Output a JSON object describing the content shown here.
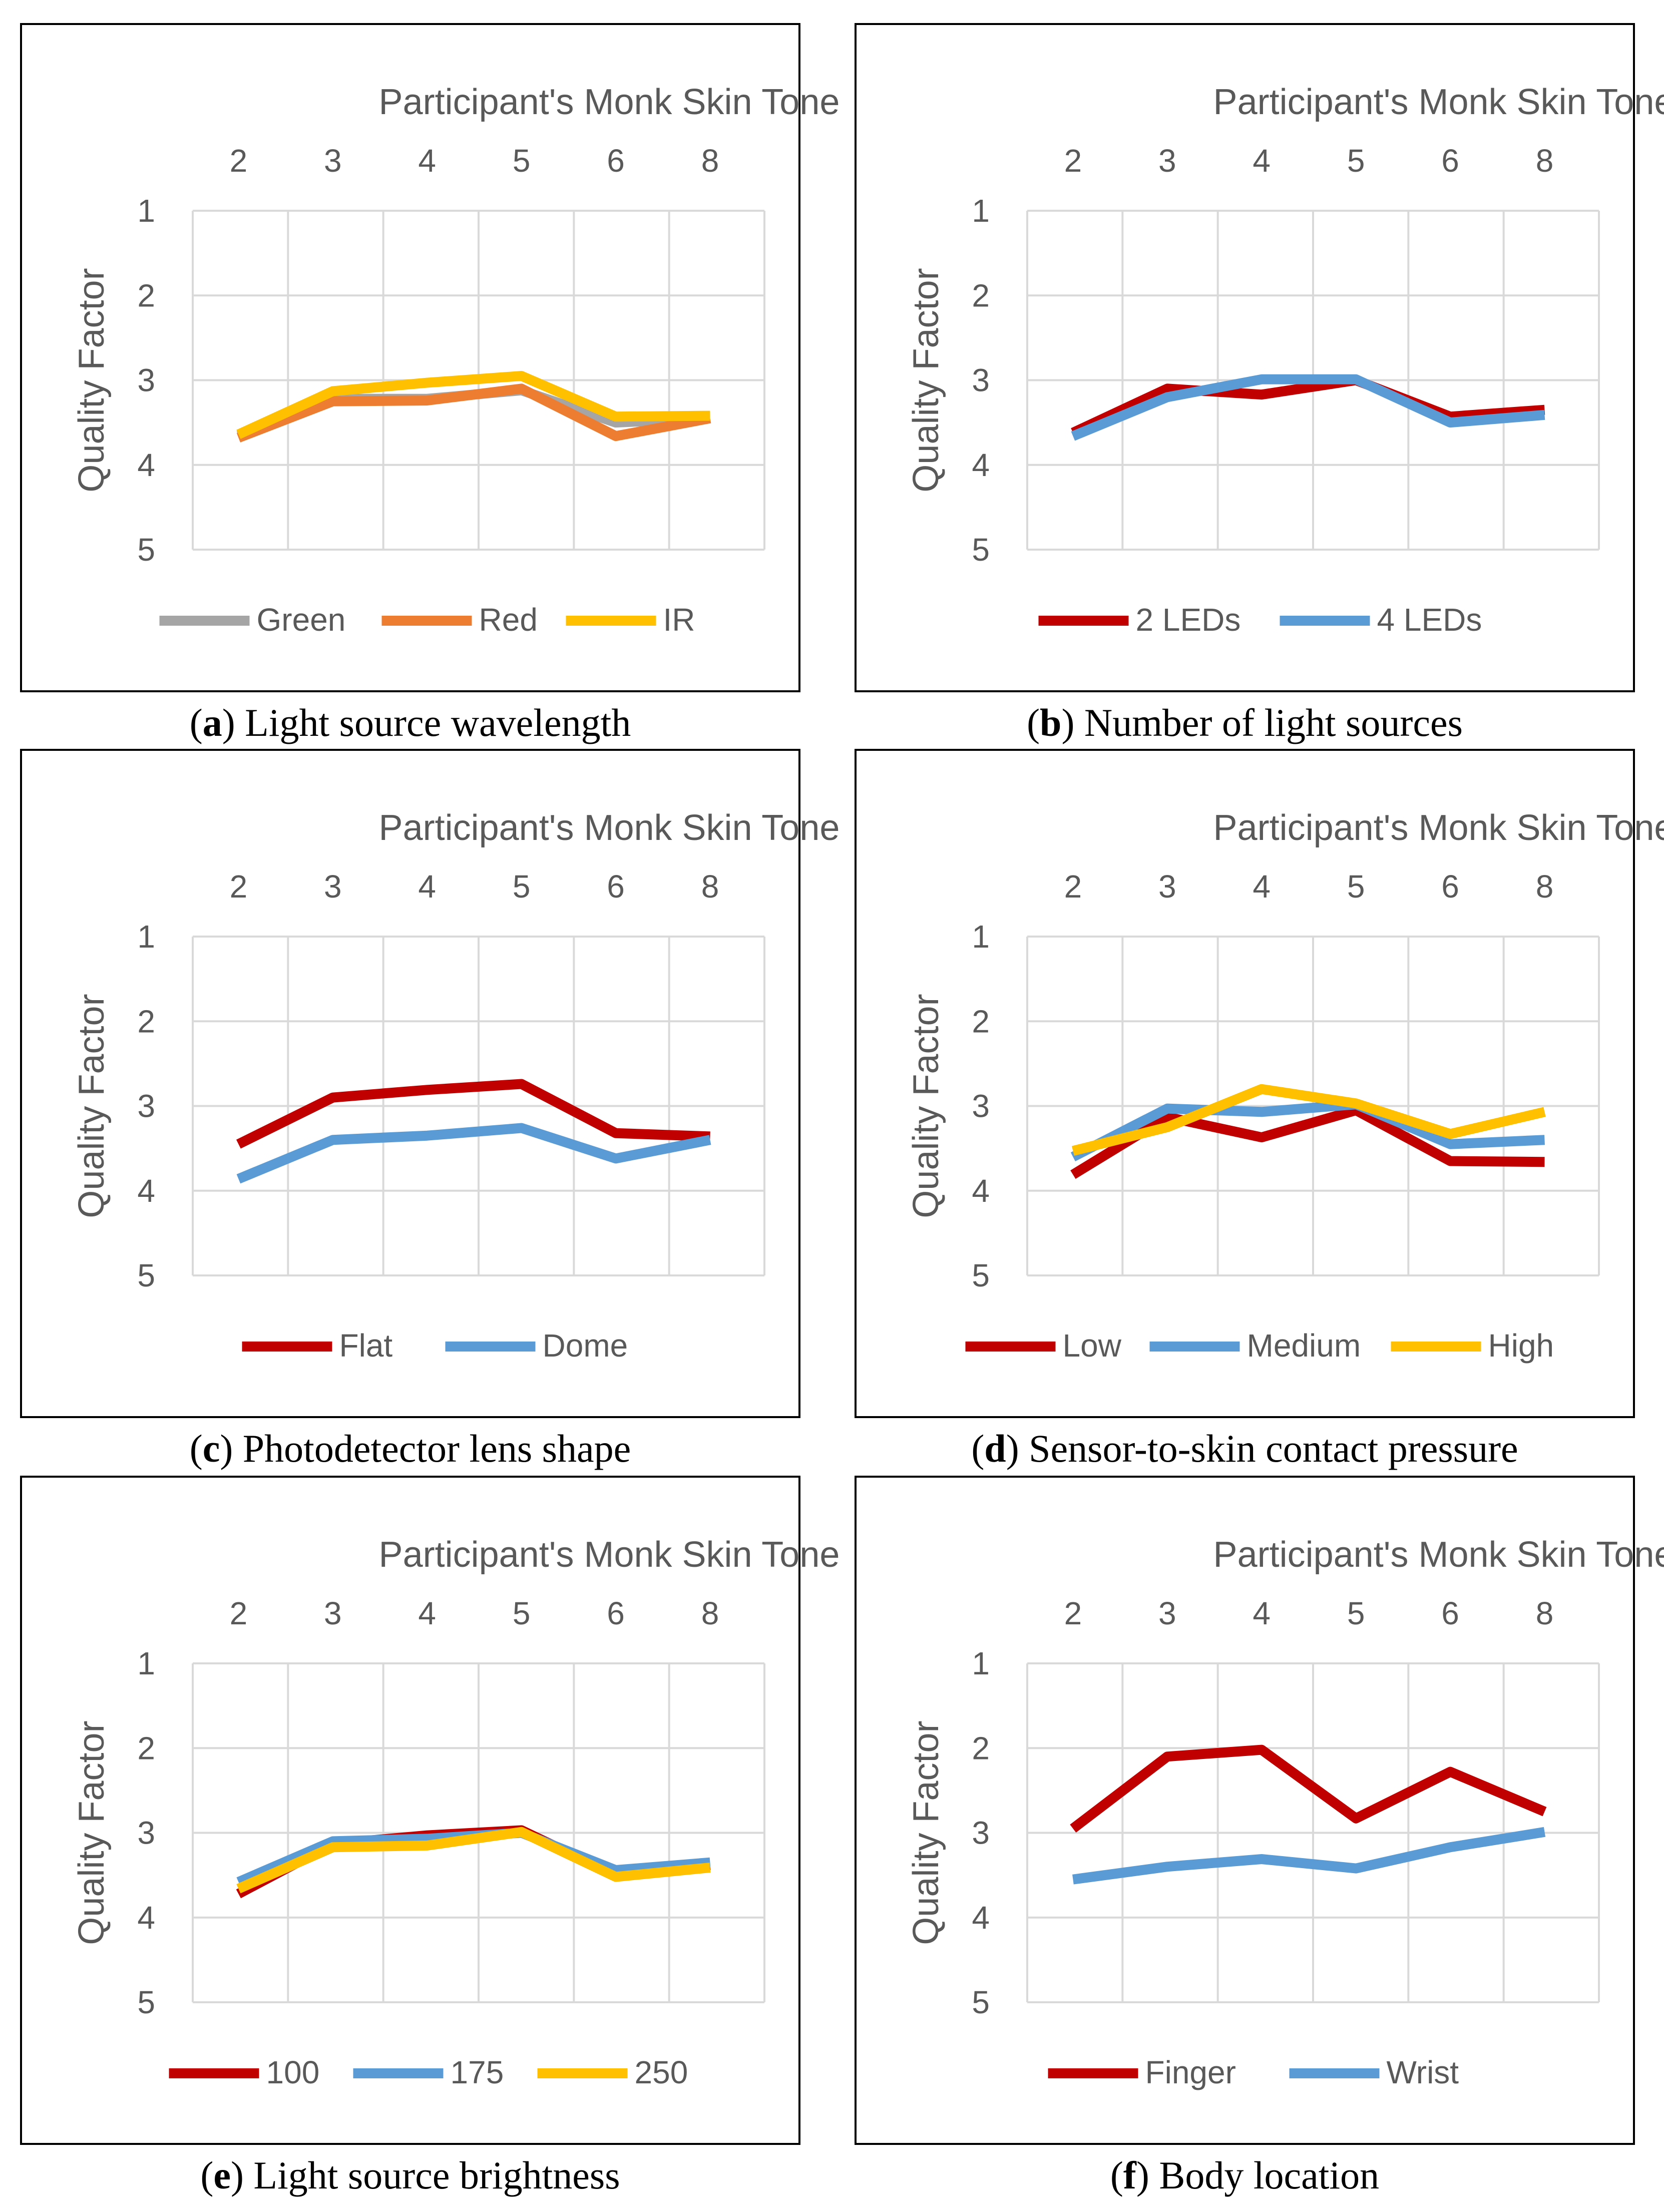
{
  "chart_data": [
    {
      "type": "line",
      "id": "a",
      "caption_letter": "a",
      "caption_text": " Light source wavelength",
      "xlabel": "Participant's Monk Skin Tone",
      "ylabel": "Quality Factor",
      "categories": [
        "2",
        "3",
        "4",
        "5",
        "6",
        "8"
      ],
      "yticks": [
        "1",
        "2",
        "3",
        "4",
        "5"
      ],
      "ylim": [
        1,
        5
      ],
      "y_inverted": true,
      "series": [
        {
          "name": "Green",
          "color": "#a5a5a5",
          "values": [
            3.66,
            3.22,
            3.22,
            3.12,
            3.5,
            3.45
          ]
        },
        {
          "name": "Red",
          "color": "#ed7d31",
          "values": [
            3.68,
            3.25,
            3.24,
            3.1,
            3.66,
            3.45
          ]
        },
        {
          "name": "IR",
          "color": "#ffc000",
          "values": [
            3.64,
            3.13,
            3.03,
            2.95,
            3.43,
            3.42
          ]
        }
      ]
    },
    {
      "type": "line",
      "id": "b",
      "caption_letter": "b",
      "caption_text": " Number of light sources",
      "xlabel": "Participant's Monk Skin Tone",
      "ylabel": "Quality Factor",
      "categories": [
        "2",
        "3",
        "4",
        "5",
        "6",
        "8"
      ],
      "yticks": [
        "1",
        "2",
        "3",
        "4",
        "5"
      ],
      "ylim": [
        1,
        5
      ],
      "y_inverted": true,
      "series": [
        {
          "name": "2 LEDs",
          "color": "#c00000",
          "values": [
            3.62,
            3.1,
            3.17,
            3.0,
            3.43,
            3.35
          ]
        },
        {
          "name": "4 LEDs",
          "color": "#5b9bd5",
          "values": [
            3.66,
            3.2,
            2.99,
            2.99,
            3.5,
            3.41
          ]
        }
      ]
    },
    {
      "type": "line",
      "id": "c",
      "caption_letter": "c",
      "caption_text": " Photodetector lens shape",
      "xlabel": "Participant's Monk Skin Tone",
      "ylabel": "Quality Factor",
      "categories": [
        "2",
        "3",
        "4",
        "5",
        "6",
        "8"
      ],
      "yticks": [
        "1",
        "2",
        "3",
        "4",
        "5"
      ],
      "ylim": [
        1,
        5
      ],
      "y_inverted": true,
      "series": [
        {
          "name": "Flat",
          "color": "#c00000",
          "values": [
            3.45,
            2.9,
            2.81,
            2.74,
            3.32,
            3.36
          ]
        },
        {
          "name": "Dome",
          "color": "#5b9bd5",
          "values": [
            3.86,
            3.4,
            3.35,
            3.26,
            3.62,
            3.4
          ]
        }
      ]
    },
    {
      "type": "line",
      "id": "d",
      "caption_letter": "d",
      "caption_text": " Sensor-to-skin contact pressure",
      "xlabel": "Participant's Monk Skin Tone",
      "ylabel": "Quality Factor",
      "categories": [
        "2",
        "3",
        "4",
        "5",
        "6",
        "8"
      ],
      "yticks": [
        "1",
        "2",
        "3",
        "4",
        "5"
      ],
      "ylim": [
        1,
        5
      ],
      "y_inverted": true,
      "series": [
        {
          "name": "Low",
          "color": "#c00000",
          "values": [
            3.81,
            3.13,
            3.37,
            3.05,
            3.65,
            3.66
          ]
        },
        {
          "name": "Medium",
          "color": "#5b9bd5",
          "values": [
            3.6,
            3.03,
            3.07,
            2.98,
            3.45,
            3.4
          ]
        },
        {
          "name": "High",
          "color": "#ffc000",
          "values": [
            3.53,
            3.25,
            2.8,
            2.97,
            3.33,
            3.07
          ]
        }
      ]
    },
    {
      "type": "line",
      "id": "e",
      "caption_letter": "e",
      "caption_text": " Light source brightness",
      "xlabel": "Participant's Monk Skin Tone",
      "ylabel": "Quality Factor",
      "categories": [
        "2",
        "3",
        "4",
        "5",
        "6",
        "8"
      ],
      "yticks": [
        "1",
        "2",
        "3",
        "4",
        "5"
      ],
      "ylim": [
        1,
        5
      ],
      "y_inverted": true,
      "series": [
        {
          "name": "100",
          "color": "#c00000",
          "values": [
            3.72,
            3.13,
            3.03,
            2.97,
            3.5,
            3.38
          ]
        },
        {
          "name": "175",
          "color": "#5b9bd5",
          "values": [
            3.58,
            3.1,
            3.07,
            3.0,
            3.44,
            3.35
          ]
        },
        {
          "name": "250",
          "color": "#ffc000",
          "values": [
            3.66,
            3.17,
            3.15,
            2.99,
            3.52,
            3.41
          ]
        }
      ]
    },
    {
      "type": "line",
      "id": "f",
      "caption_letter": "f",
      "caption_text": " Body location",
      "xlabel": "Participant's Monk Skin Tone",
      "ylabel": "Quality Factor",
      "categories": [
        "2",
        "3",
        "4",
        "5",
        "6",
        "8"
      ],
      "yticks": [
        "1",
        "2",
        "3",
        "4",
        "5"
      ],
      "ylim": [
        1,
        5
      ],
      "y_inverted": true,
      "series": [
        {
          "name": "Finger",
          "color": "#c00000",
          "values": [
            2.95,
            2.1,
            2.02,
            2.83,
            2.28,
            2.75
          ]
        },
        {
          "name": "Wrist",
          "color": "#5b9bd5",
          "values": [
            3.55,
            3.4,
            3.31,
            3.42,
            3.17,
            2.99
          ]
        }
      ]
    }
  ]
}
